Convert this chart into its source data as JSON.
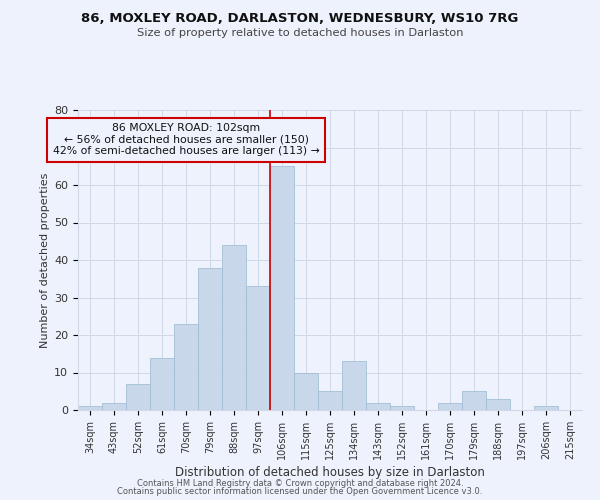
{
  "title": "86, MOXLEY ROAD, DARLASTON, WEDNESBURY, WS10 7RG",
  "subtitle": "Size of property relative to detached houses in Darlaston",
  "xlabel": "Distribution of detached houses by size in Darlaston",
  "ylabel": "Number of detached properties",
  "categories": [
    "34sqm",
    "43sqm",
    "52sqm",
    "61sqm",
    "70sqm",
    "79sqm",
    "88sqm",
    "97sqm",
    "106sqm",
    "115sqm",
    "125sqm",
    "134sqm",
    "143sqm",
    "152sqm",
    "161sqm",
    "170sqm",
    "179sqm",
    "188sqm",
    "197sqm",
    "206sqm",
    "215sqm"
  ],
  "values": [
    1,
    2,
    7,
    14,
    23,
    38,
    44,
    33,
    65,
    10,
    5,
    13,
    2,
    1,
    0,
    2,
    5,
    3,
    0,
    1,
    0
  ],
  "bar_color": "#c8d8ea",
  "bar_edge_color": "#9ab8d0",
  "bar_width": 1.0,
  "vline_color": "#cc0000",
  "annotation_title": "86 MOXLEY ROAD: 102sqm",
  "annotation_line1": "← 56% of detached houses are smaller (150)",
  "annotation_line2": "42% of semi-detached houses are larger (113) →",
  "annotation_box_color": "#cc0000",
  "ylim": [
    0,
    80
  ],
  "yticks": [
    0,
    10,
    20,
    30,
    40,
    50,
    60,
    70,
    80
  ],
  "footer1": "Contains HM Land Registry data © Crown copyright and database right 2024.",
  "footer2": "Contains public sector information licensed under the Open Government Licence v3.0.",
  "bg_color": "#eef2fc",
  "grid_color": "#d0d8e8"
}
